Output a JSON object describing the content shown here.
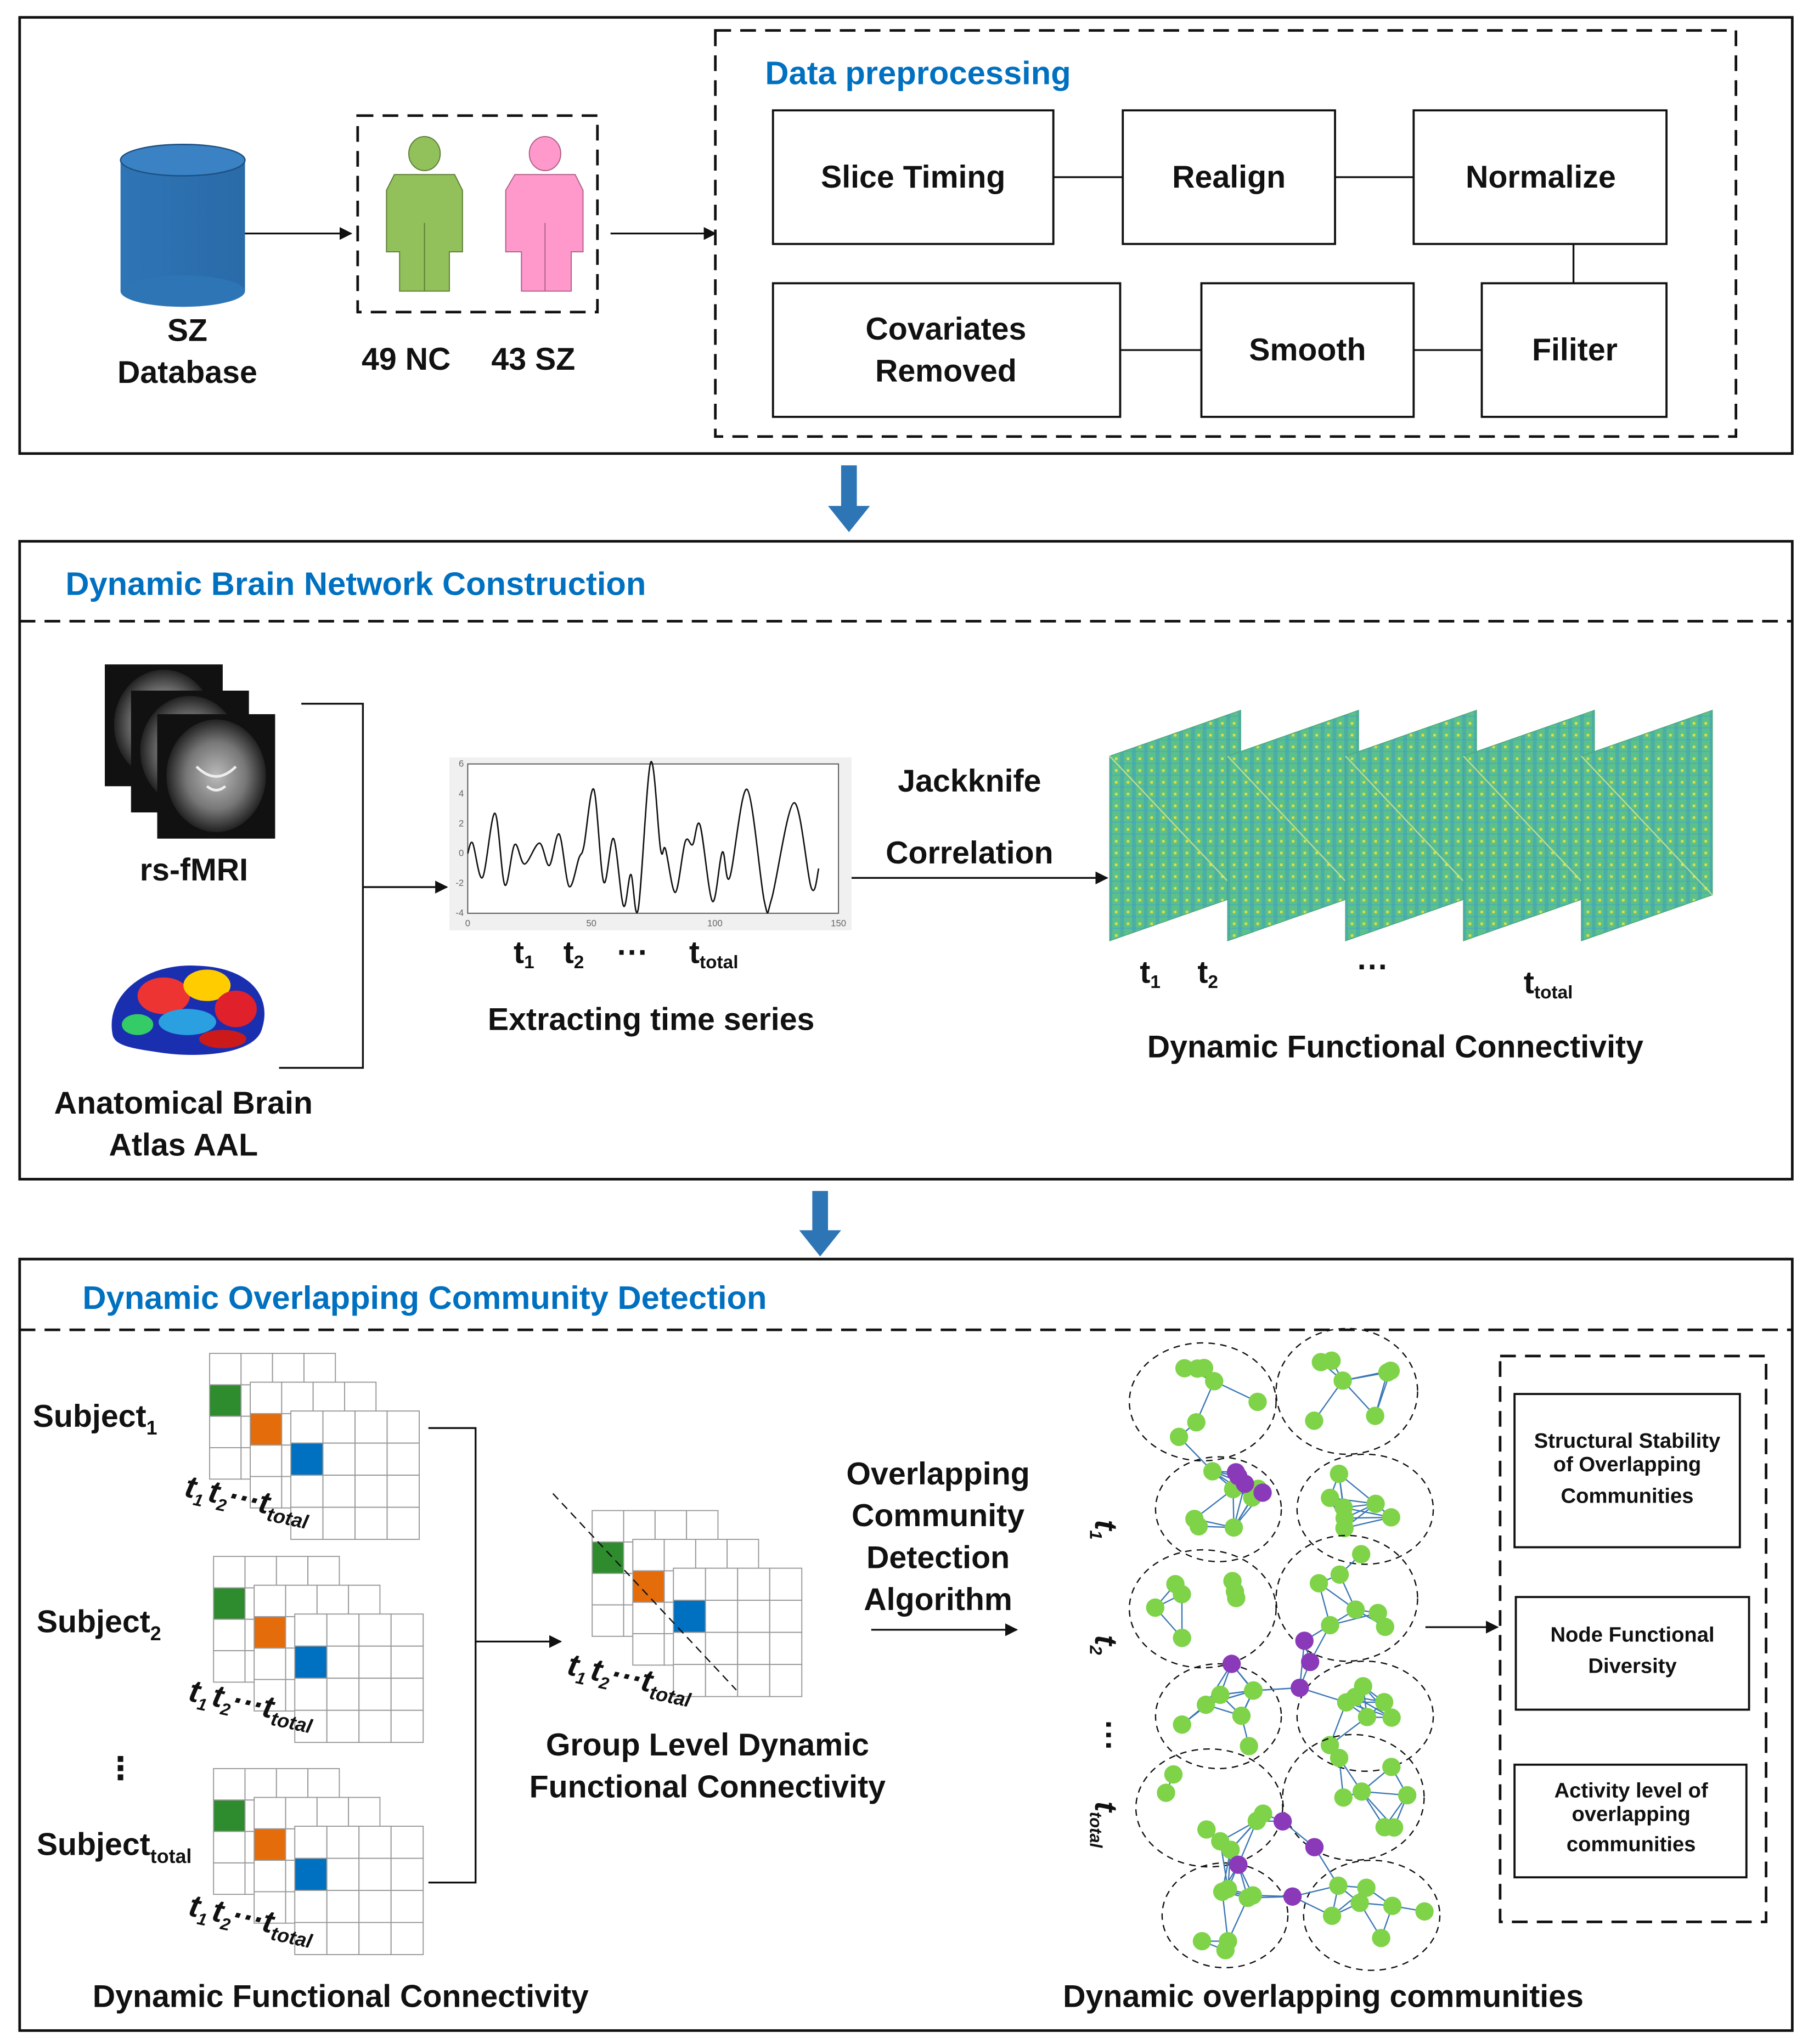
{
  "section1": {
    "database_label": [
      "SZ",
      "Database"
    ],
    "group_nc": "49 NC",
    "group_sz": "43 SZ",
    "preprocessing_title": "Data preprocessing",
    "steps": {
      "slice_timing": "Slice Timing",
      "realign": "Realign",
      "normalize": "Normalize",
      "covariates": [
        "Covariates",
        "Removed"
      ],
      "smooth": "Smooth",
      "filter": "Filiter"
    },
    "colors": {
      "database": "#2E75B6",
      "nc_figure": "#92C05A",
      "sz_figure": "#FF99CC",
      "title": "#0070C0",
      "flow_arrow": "#2E75B6"
    }
  },
  "section2": {
    "title": "Dynamic Brain Network Construction",
    "rsfmri_label": "rs-fMRI",
    "atlas_label": [
      "Anatomical Brain",
      "Atlas AAL"
    ],
    "time_labels": {
      "t": "t",
      "sub1": "1",
      "sub2": "2",
      "ellipsis": "···",
      "total": "total"
    },
    "extract_label": "Extracting time series",
    "method_label": [
      "Jackknife",
      "Correlation"
    ],
    "dfc_label": "Dynamic Functional Connectivity",
    "dfc_ellipsis": "···"
  },
  "chart_data": {
    "type": "line",
    "title": "",
    "xlabel": "",
    "ylabel": "",
    "xlim": [
      0,
      150
    ],
    "ylim": [
      -4,
      6
    ],
    "x_ticks": [
      "0",
      "50",
      "100",
      "150"
    ],
    "y_ticks": [
      "-4",
      "-2",
      "0",
      "2",
      "4",
      "6"
    ],
    "grid": false,
    "x": [
      0,
      2,
      6,
      11,
      15,
      19,
      23,
      29,
      33,
      37,
      41,
      45,
      47,
      51,
      55,
      59,
      63,
      66,
      69,
      74,
      78,
      80,
      84,
      88,
      91,
      94,
      99,
      103,
      106,
      113,
      120,
      123,
      132,
      139,
      142
    ],
    "y": [
      0,
      0.7,
      -1.6,
      2.7,
      -2.1,
      0.6,
      -0.7,
      0.7,
      -0.8,
      1.3,
      -2.2,
      -0.3,
      0.5,
      4.3,
      -1.9,
      1.0,
      -3.5,
      -1.4,
      -3.7,
      6.1,
      0.3,
      0.3,
      -2.6,
      0.8,
      0.6,
      1.9,
      -3.2,
      0.1,
      -1.6,
      4.3,
      -3.2,
      -3.0,
      3.4,
      -2.3,
      -1.0
    ]
  },
  "section3": {
    "title": "Dynamic Overlapping Community Detection",
    "subject": "Subject",
    "subjects": [
      "1",
      "2",
      "total"
    ],
    "vdots": "⋮",
    "time_labels": {
      "t": "t",
      "sub1": "1",
      "sub2": "2",
      "ellipsis": "···",
      "total": "total"
    },
    "group_label": [
      "Group Level Dynamic",
      "Functional Connectivity"
    ],
    "algorithm_label": [
      "Overlapping",
      "Community",
      "Detection",
      "Algorithm"
    ],
    "network_time_labels": [
      "1",
      "2",
      "total"
    ],
    "network_ellipsis": "···",
    "metrics": [
      [
        "Structural Stability",
        "of Overlapping",
        "Communities"
      ],
      [
        "Node Functional",
        "Diversity"
      ],
      [
        "Activity level of",
        "overlapping",
        "communities"
      ]
    ],
    "left_caption": "Dynamic Functional Connectivity",
    "right_caption": "Dynamic overlapping communities",
    "colors": {
      "cell_green": "#2E8B2E",
      "cell_orange": "#E46C0A",
      "cell_blue": "#0070C0",
      "node_green": "#7ED348",
      "node_purple": "#8A3AB9",
      "edge": "#3C78B4"
    }
  }
}
